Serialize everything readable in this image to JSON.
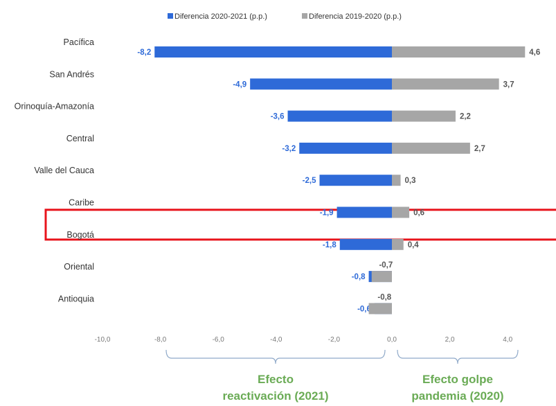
{
  "chart_data": {
    "type": "bar",
    "orientation": "horizontal",
    "categories": [
      "Pacífica",
      "San Andrés",
      "Orinoquía-Amazonía",
      "Central",
      "Valle del Cauca",
      "Caribe",
      "Bogotá",
      "Oriental",
      "Antioquia"
    ],
    "series": [
      {
        "name": "Diferencia 2020-2021 (p.p.)",
        "color": "#2e6ad8",
        "values": [
          -8.2,
          -4.9,
          -3.6,
          -3.2,
          -2.5,
          -1.9,
          -1.8,
          -0.8,
          -0.6
        ],
        "labels": [
          "-8,2",
          "-4,9",
          "-3,6",
          "-3,2",
          "-2,5",
          "-1,9",
          "-1,8",
          "-0,8",
          "-0,6"
        ]
      },
      {
        "name": "Diferencia 2019-2020 (p.p.)",
        "color": "#a6a6a6",
        "values": [
          4.6,
          3.7,
          2.2,
          2.7,
          0.3,
          0.6,
          0.4,
          -0.7,
          -0.8
        ],
        "labels": [
          "4,6",
          "3,7",
          "2,2",
          "2,7",
          "0,3",
          "0,6",
          "0,4",
          "-0,7",
          "-0,8"
        ]
      }
    ],
    "xlim": [
      -10,
      5
    ],
    "xticks": [
      -10,
      -8,
      -6,
      -4,
      -2,
      0,
      2,
      4
    ],
    "xtick_labels": [
      "-10,0",
      "-8,0",
      "-6,0",
      "-4,0",
      "-2,0",
      "0,0",
      "2,0",
      "4,0"
    ],
    "legend_position": "top",
    "grid": false,
    "highlighted_category": "Bogotá",
    "highlight_color": "#e8141c",
    "annotations": [
      {
        "text_line1": "Efecto",
        "text_line2": "reactivación (2021)",
        "range": [
          -8,
          0
        ],
        "color": "#6aab55"
      },
      {
        "text_line1": "Efecto golpe",
        "text_line2": "pandemia (2020)",
        "range": [
          0,
          4
        ],
        "color": "#6aab55"
      }
    ]
  }
}
